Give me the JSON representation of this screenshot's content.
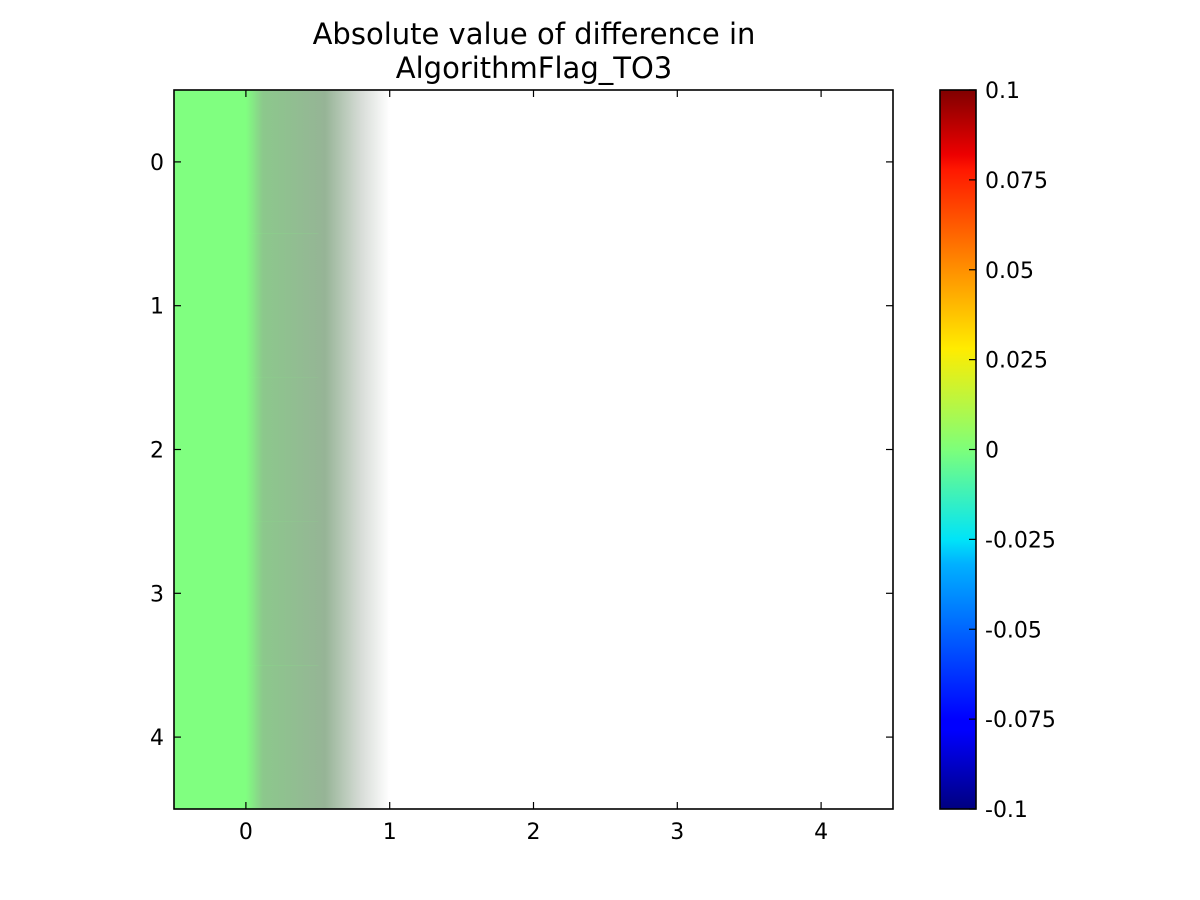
{
  "chart_data": {
    "type": "heatmap",
    "title": "Absolute value of difference in AlgorithmFlag_TO3",
    "title_lines": [
      "Absolute value of difference in",
      "AlgorithmFlag_TO3"
    ],
    "xlabel": "",
    "ylabel": "",
    "x_ticks": [
      "0",
      "1",
      "2",
      "3",
      "4"
    ],
    "y_ticks": [
      "0",
      "1",
      "2",
      "3",
      "4"
    ],
    "xlim": [
      -0.5,
      4.5
    ],
    "ylim": [
      4.5,
      -0.5
    ],
    "grid": false,
    "rows": 5,
    "cols": 5,
    "values": [
      [
        0,
        null,
        null,
        null,
        null
      ],
      [
        0,
        null,
        null,
        null,
        null
      ],
      [
        0,
        null,
        null,
        null,
        null
      ],
      [
        0,
        null,
        null,
        null,
        null
      ],
      [
        0,
        null,
        null,
        null,
        null
      ]
    ],
    "interpolation": "bilinear",
    "colormap": "jet",
    "masked_color": "#ffffff",
    "colorbar": {
      "vmin": -0.1,
      "vmax": 0.1,
      "ticks": [
        0.1,
        0.075,
        0.05,
        0.025,
        0,
        -0.025,
        -0.05,
        -0.075,
        -0.1
      ],
      "tick_labels": [
        "0.1",
        "0.075",
        "0.05",
        "0.025",
        "0",
        "-0.025",
        "-0.05",
        "-0.075",
        "-0.1"
      ]
    }
  }
}
